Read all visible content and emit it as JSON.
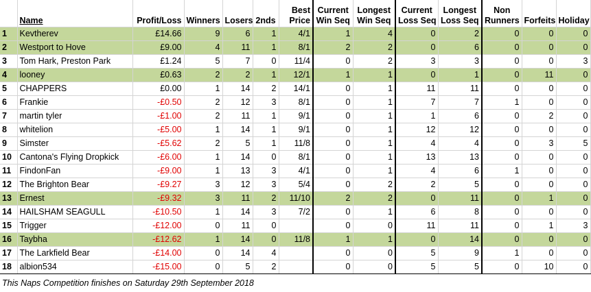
{
  "header": {
    "name": "Name",
    "profit_loss": "Profit/Loss",
    "winners": "Winners",
    "losers": "Losers",
    "seconds": "2nds",
    "best_price_l1": "Best",
    "best_price_l2": "Price",
    "cur_win_l1": "Current",
    "cur_win_l2": "Win Seq",
    "long_win_l1": "Longest",
    "long_win_l2": "Win Seq",
    "cur_loss_l1": "Current",
    "cur_loss_l2": "Loss Seq",
    "long_loss_l1": "Longest",
    "long_loss_l2": "Loss Seq",
    "non_runners_l1": "Non",
    "non_runners_l2": "Runners",
    "forfeits": "Forfeits",
    "holiday": "Holiday"
  },
  "rows": [
    {
      "rank": "1",
      "name": "Kevtherev",
      "pl": "£14.66",
      "neg": false,
      "green": true,
      "winners": "9",
      "losers": "6",
      "seconds": "1",
      "best": "4/1",
      "cw": "1",
      "lw": "4",
      "cl": "0",
      "ll": "2",
      "nr": "0",
      "ff": "0",
      "hol": "0"
    },
    {
      "rank": "2",
      "name": "Westport to Hove",
      "pl": "£9.00",
      "neg": false,
      "green": true,
      "winners": "4",
      "losers": "11",
      "seconds": "1",
      "best": "8/1",
      "cw": "2",
      "lw": "2",
      "cl": "0",
      "ll": "6",
      "nr": "0",
      "ff": "0",
      "hol": "0"
    },
    {
      "rank": "3",
      "name": "Tom Hark, Preston Park",
      "pl": "£1.24",
      "neg": false,
      "green": false,
      "winners": "5",
      "losers": "7",
      "seconds": "0",
      "best": "11/4",
      "cw": "0",
      "lw": "2",
      "cl": "3",
      "ll": "3",
      "nr": "0",
      "ff": "0",
      "hol": "3"
    },
    {
      "rank": "4",
      "name": "looney",
      "pl": "£0.63",
      "neg": false,
      "green": true,
      "winners": "2",
      "losers": "2",
      "seconds": "1",
      "best": "12/1",
      "cw": "1",
      "lw": "1",
      "cl": "0",
      "ll": "1",
      "nr": "0",
      "ff": "11",
      "hol": "0"
    },
    {
      "rank": "5",
      "name": "CHAPPERS",
      "pl": "£0.00",
      "neg": false,
      "green": false,
      "winners": "1",
      "losers": "14",
      "seconds": "2",
      "best": "14/1",
      "cw": "0",
      "lw": "1",
      "cl": "11",
      "ll": "11",
      "nr": "0",
      "ff": "0",
      "hol": "0"
    },
    {
      "rank": "6",
      "name": "Frankie",
      "pl": "-£0.50",
      "neg": true,
      "green": false,
      "winners": "2",
      "losers": "12",
      "seconds": "3",
      "best": "8/1",
      "cw": "0",
      "lw": "1",
      "cl": "7",
      "ll": "7",
      "nr": "1",
      "ff": "0",
      "hol": "0"
    },
    {
      "rank": "7",
      "name": "martin tyler",
      "pl": "-£1.00",
      "neg": true,
      "green": false,
      "winners": "2",
      "losers": "11",
      "seconds": "1",
      "best": "9/1",
      "cw": "0",
      "lw": "1",
      "cl": "1",
      "ll": "6",
      "nr": "0",
      "ff": "2",
      "hol": "0"
    },
    {
      "rank": "8",
      "name": "whitelion",
      "pl": "-£5.00",
      "neg": true,
      "green": false,
      "winners": "1",
      "losers": "14",
      "seconds": "1",
      "best": "9/1",
      "cw": "0",
      "lw": "1",
      "cl": "12",
      "ll": "12",
      "nr": "0",
      "ff": "0",
      "hol": "0"
    },
    {
      "rank": "9",
      "name": "Simster",
      "pl": "-£5.62",
      "neg": true,
      "green": false,
      "winners": "2",
      "losers": "5",
      "seconds": "1",
      "best": "11/8",
      "cw": "0",
      "lw": "1",
      "cl": "4",
      "ll": "4",
      "nr": "0",
      "ff": "3",
      "hol": "5"
    },
    {
      "rank": "10",
      "name": "Cantona's Flying Dropkick",
      "pl": "-£6.00",
      "neg": true,
      "green": false,
      "winners": "1",
      "losers": "14",
      "seconds": "0",
      "best": "8/1",
      "cw": "0",
      "lw": "1",
      "cl": "13",
      "ll": "13",
      "nr": "0",
      "ff": "0",
      "hol": "0"
    },
    {
      "rank": "11",
      "name": "FindonFan",
      "pl": "-£9.00",
      "neg": true,
      "green": false,
      "winners": "1",
      "losers": "13",
      "seconds": "3",
      "best": "4/1",
      "cw": "0",
      "lw": "1",
      "cl": "4",
      "ll": "6",
      "nr": "1",
      "ff": "0",
      "hol": "0"
    },
    {
      "rank": "12",
      "name": "The Brighton Bear",
      "pl": "-£9.27",
      "neg": true,
      "green": false,
      "winners": "3",
      "losers": "12",
      "seconds": "3",
      "best": "5/4",
      "cw": "0",
      "lw": "2",
      "cl": "2",
      "ll": "5",
      "nr": "0",
      "ff": "0",
      "hol": "0"
    },
    {
      "rank": "13",
      "name": "Ernest",
      "pl": "-£9.32",
      "neg": true,
      "green": true,
      "winners": "3",
      "losers": "11",
      "seconds": "2",
      "best": "11/10",
      "cw": "2",
      "lw": "2",
      "cl": "0",
      "ll": "11",
      "nr": "0",
      "ff": "1",
      "hol": "0"
    },
    {
      "rank": "14",
      "name": "HAILSHAM SEAGULL",
      "pl": "-£10.50",
      "neg": true,
      "green": false,
      "winners": "1",
      "losers": "14",
      "seconds": "3",
      "best": "7/2",
      "cw": "0",
      "lw": "1",
      "cl": "6",
      "ll": "8",
      "nr": "0",
      "ff": "0",
      "hol": "0"
    },
    {
      "rank": "15",
      "name": "Trigger",
      "pl": "-£12.00",
      "neg": true,
      "green": false,
      "winners": "0",
      "losers": "11",
      "seconds": "0",
      "best": "",
      "cw": "0",
      "lw": "0",
      "cl": "11",
      "ll": "11",
      "nr": "0",
      "ff": "1",
      "hol": "3"
    },
    {
      "rank": "16",
      "name": "Taybha",
      "pl": "-£12.62",
      "neg": true,
      "green": true,
      "winners": "1",
      "losers": "14",
      "seconds": "0",
      "best": "11/8",
      "cw": "1",
      "lw": "1",
      "cl": "0",
      "ll": "14",
      "nr": "0",
      "ff": "0",
      "hol": "0"
    },
    {
      "rank": "17",
      "name": "The Larkfield Bear",
      "pl": "-£14.00",
      "neg": true,
      "green": false,
      "winners": "0",
      "losers": "14",
      "seconds": "4",
      "best": "",
      "cw": "0",
      "lw": "0",
      "cl": "5",
      "ll": "9",
      "nr": "1",
      "ff": "0",
      "hol": "0"
    },
    {
      "rank": "18",
      "name": "albion534",
      "pl": "-£15.00",
      "neg": true,
      "green": false,
      "winners": "0",
      "losers": "5",
      "seconds": "2",
      "best": "",
      "cw": "0",
      "lw": "0",
      "cl": "5",
      "ll": "5",
      "nr": "0",
      "ff": "10",
      "hol": "0"
    }
  ],
  "footer": "This Naps Competition finishes on Saturday 29th September 2018",
  "colors": {
    "highlight_row": "#c4d79b",
    "negative_text": "#e00000",
    "grid_line": "#d4d4d4"
  }
}
